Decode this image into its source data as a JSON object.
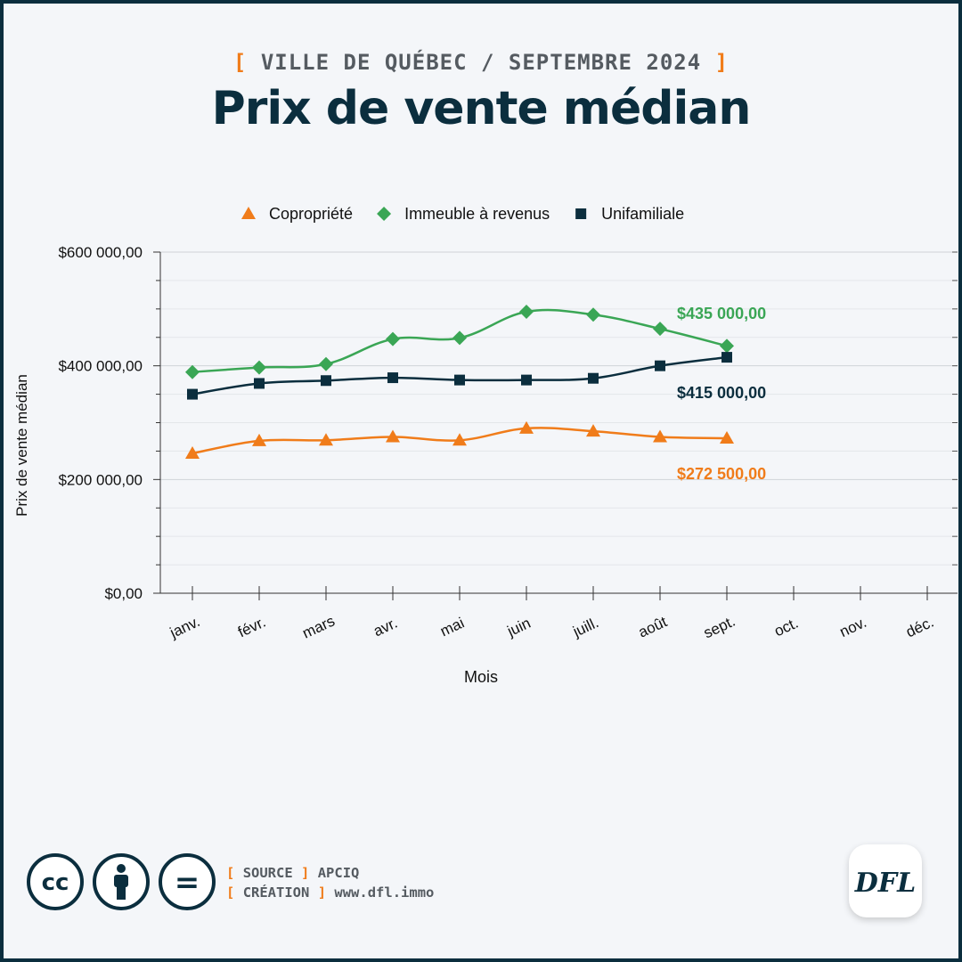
{
  "header": {
    "kicker_open": "[",
    "kicker": "VILLE DE QUÉBEC / SEPTEMBRE 2024",
    "kicker_close": "]",
    "title": "Prix de vente médian"
  },
  "chart_data": {
    "type": "line",
    "categories": [
      "janv.",
      "févr.",
      "mars",
      "avr.",
      "mai",
      "juin",
      "juill.",
      "août",
      "sept.",
      "oct.",
      "nov.",
      "déc."
    ],
    "xlabel": "Mois",
    "ylabel": "Prix de vente médian",
    "ylim": [
      0,
      600000
    ],
    "yticks": [
      {
        "value": 0,
        "label": "$0,00"
      },
      {
        "value": 200000,
        "label": "$200 000,00"
      },
      {
        "value": 400000,
        "label": "$400 000,00"
      },
      {
        "value": 600000,
        "label": "$600 000,00"
      }
    ],
    "grid": true,
    "legend_position": "top",
    "series": [
      {
        "name": "Copropriété",
        "color": "#f07c1a",
        "marker": "triangle",
        "values": [
          246000,
          268000,
          269000,
          275000,
          269000,
          290000,
          285000,
          275000,
          272500,
          null,
          null,
          null
        ],
        "end_label": "$272 500,00"
      },
      {
        "name": "Immeuble à revenus",
        "color": "#3aa655",
        "marker": "diamond",
        "values": [
          389000,
          397000,
          403000,
          447000,
          449000,
          495000,
          490000,
          465000,
          435000,
          null,
          null,
          null
        ],
        "end_label": "$435 000,00"
      },
      {
        "name": "Unifamiliale",
        "color": "#0b2e3e",
        "marker": "square",
        "values": [
          350000,
          369000,
          374000,
          379000,
          375000,
          375000,
          378000,
          400000,
          415000,
          null,
          null,
          null
        ],
        "end_label": "$415 000,00"
      }
    ]
  },
  "footer": {
    "source_label": "SOURCE",
    "source_value": "APCIQ",
    "creation_label": "CRÉATION",
    "creation_value": "www.dfl.immo",
    "cc_text": "cc",
    "equals_text": "=",
    "logo_text": "DFL"
  }
}
